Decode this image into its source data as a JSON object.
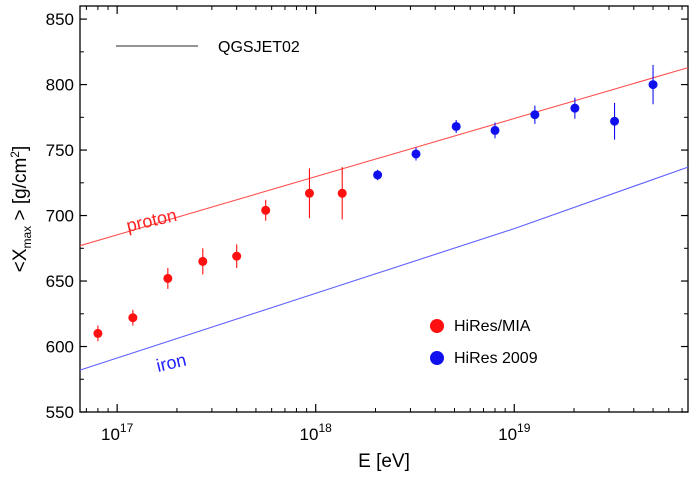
{
  "chart_data": {
    "type": "scatter",
    "title": "",
    "xlabel": "E [eV]",
    "ylabel": {
      "prefix": "<X",
      "subscript": "max",
      "suffix": " > [g/cm",
      "superscript": "2",
      "close": "]"
    },
    "x_scale": "log",
    "xlim": [
      6.5e+16,
      7.5e+19
    ],
    "ylim": [
      550,
      860
    ],
    "x_ticks": [
      {
        "value": 1e+17,
        "base": "10",
        "exponent": "17"
      },
      {
        "value": 1e+18,
        "base": "10",
        "exponent": "18"
      },
      {
        "value": 1e+19,
        "base": "10",
        "exponent": "19"
      }
    ],
    "y_ticks": [
      550,
      600,
      650,
      700,
      750,
      800,
      850
    ],
    "grid": false,
    "legend_placement": "top-left",
    "model_legend": {
      "label": "QGSJET02",
      "color": "#555555"
    },
    "lines": [
      {
        "label": "proton",
        "color": "#ff5050",
        "x": [
          6.5e+16,
          7.5e+19
        ],
        "y": [
          677,
          813
        ]
      },
      {
        "label": "iron",
        "color": "#6060ff",
        "x": [
          6.5e+16,
          1e+19,
          7.5e+19
        ],
        "y": [
          582,
          690,
          737
        ]
      }
    ],
    "series": [
      {
        "name": "HiRes/MIA",
        "color": "#ff1010",
        "points": [
          {
            "x": 8e+16,
            "y": 610,
            "err": 6
          },
          {
            "x": 1.2e+17,
            "y": 622,
            "err": 6
          },
          {
            "x": 1.8e+17,
            "y": 652,
            "err": 8
          },
          {
            "x": 2.7e+17,
            "y": 665,
            "err": 10
          },
          {
            "x": 4e+17,
            "y": 669,
            "err": 9
          },
          {
            "x": 5.6e+17,
            "y": 704,
            "err": 8
          },
          {
            "x": 9.3e+17,
            "y": 717,
            "err": 19
          },
          {
            "x": 1.36e+18,
            "y": 717,
            "err": 20
          }
        ]
      },
      {
        "name": "HiRes 2009",
        "color": "#1010ee",
        "points": [
          {
            "x": 2.05e+18,
            "y": 731,
            "err": 4
          },
          {
            "x": 3.2e+18,
            "y": 747,
            "err": 5
          },
          {
            "x": 5.1e+18,
            "y": 768,
            "err": 5
          },
          {
            "x": 8e+18,
            "y": 765,
            "err": 6
          },
          {
            "x": 1.27e+19,
            "y": 777,
            "err": 7
          },
          {
            "x": 2.02e+19,
            "y": 782,
            "err": 8
          },
          {
            "x": 3.2e+19,
            "y": 772,
            "err": 14
          },
          {
            "x": 5e+19,
            "y": 800,
            "err": 15
          }
        ]
      }
    ]
  }
}
